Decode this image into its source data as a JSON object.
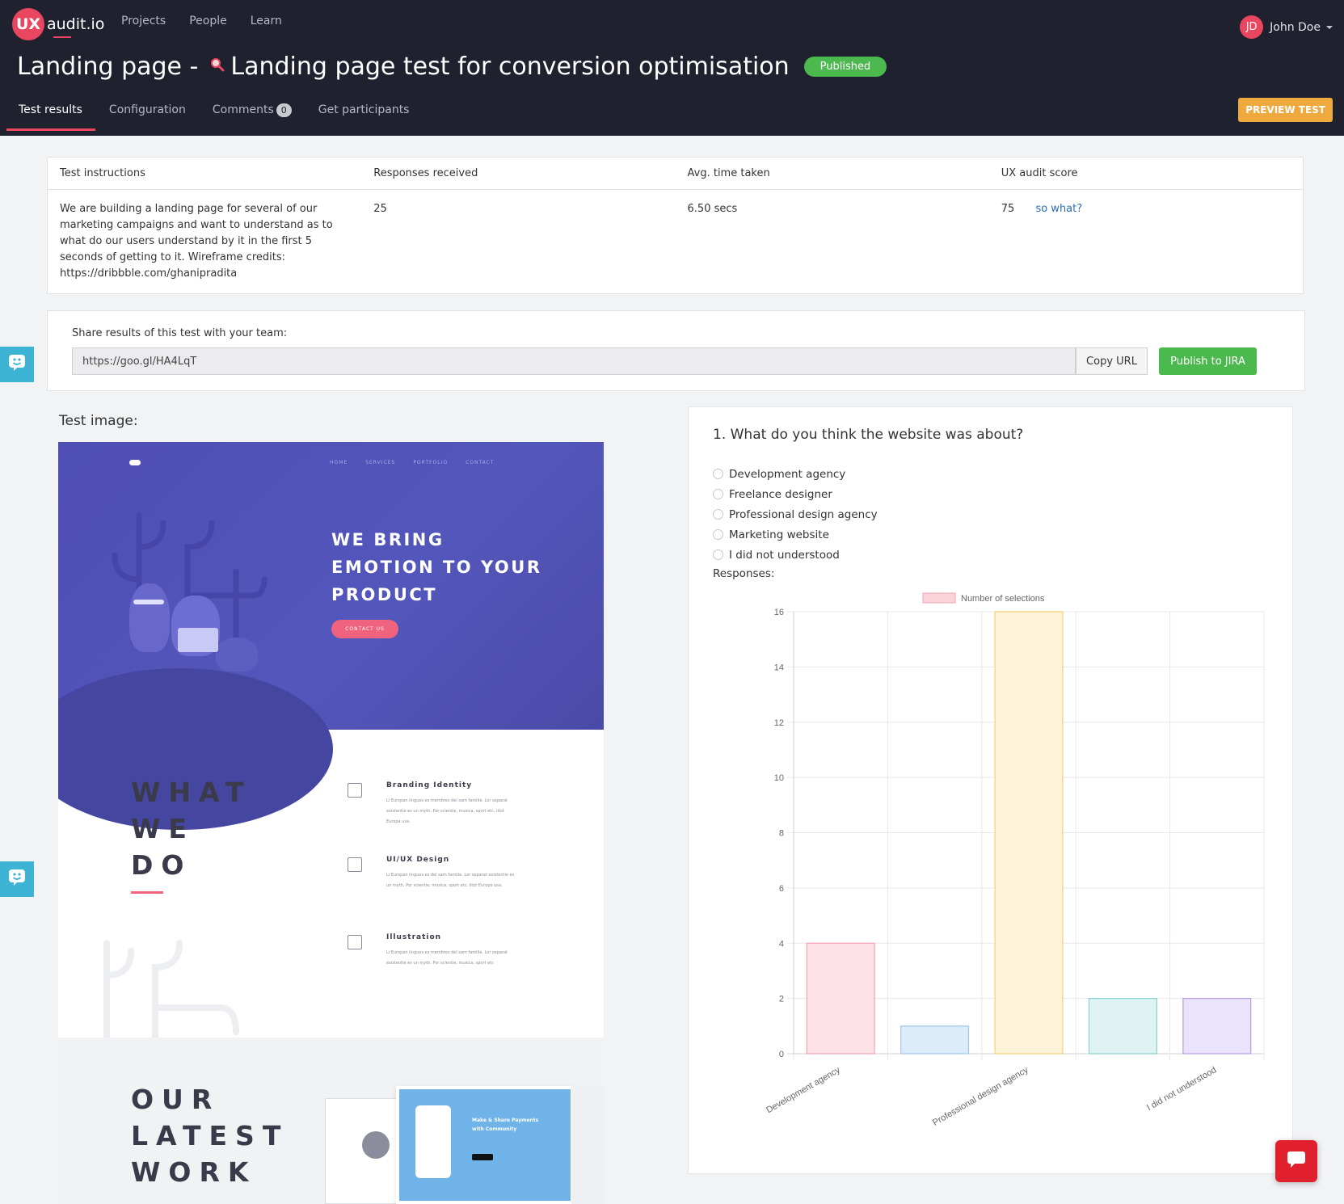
{
  "app": {
    "logo_mark": "UX",
    "logo_text": "audit.io"
  },
  "nav": [
    "Projects",
    "People",
    "Learn"
  ],
  "user": {
    "initials": "JD",
    "name": "John Doe"
  },
  "page": {
    "title_prefix": "Landing page -",
    "title_icon": "magnifier-icon",
    "title": "Landing page test for conversion optimisation",
    "status": "Published"
  },
  "tabs": [
    {
      "label": "Test results",
      "active": true
    },
    {
      "label": "Configuration"
    },
    {
      "label": "Comments",
      "count": "0"
    },
    {
      "label": "Get participants"
    }
  ],
  "preview_button": "PREVIEW TEST",
  "stats": {
    "headers": [
      "Test instructions",
      "Responses received",
      "Avg. time taken",
      "UX audit score"
    ],
    "instructions": "We are building a landing page for several of our marketing campaigns and want to understand as to what do our users understand by it in the first 5 seconds of getting to it. Wireframe credits: https://dribbble.com/ghanipradita",
    "responses": "25",
    "avg_time": "6.50 secs",
    "score": "75",
    "score_link": "so what?"
  },
  "share": {
    "label": "Share results of this test with your team:",
    "url": "https://goo.gl/HA4LqT",
    "copy_button": "Copy URL",
    "jira_button": "Publish to JIRA"
  },
  "test_image": {
    "label": "Test image:",
    "nav": [
      "HOME",
      "SERVICES",
      "PORTFOLIO",
      "CONTACT"
    ],
    "hero_heading": [
      "WE BRING",
      "EMOTION TO YOUR",
      "PRODUCT"
    ],
    "hero_button": "CONTACT US",
    "section_heading": [
      "WHAT",
      "WE",
      "DO"
    ],
    "services": [
      {
        "title": "Branding Identity",
        "text": "Li Europan lingues es membres del sam familie. Lor separat existentie es un myth. Por scientie, musica, sport etc, litot Europa usa."
      },
      {
        "title": "UI/UX Design",
        "text": "Li Europan lingues es del sam familie. Lor separat existentie es un myth. Por scientie, musica, sport etc, litot Europa usa."
      },
      {
        "title": "Illustration",
        "text": "Li Europan lingues es membres del sam familie. Lor separat existentie es un myth. Por scientie, musica, sport etc"
      }
    ],
    "work_heading": [
      "OUR",
      "LATEST",
      "WORK"
    ],
    "device_text": [
      "Make & Share Payments",
      "with Community"
    ]
  },
  "question": {
    "title": "1. What do you think the website was about?",
    "options": [
      "Development agency",
      "Freelance designer",
      "Professional design agency",
      "Marketing website",
      "I did not understood"
    ],
    "responses_label": "Responses:"
  },
  "chart_data": {
    "type": "bar",
    "categories": [
      "Development agency",
      "Freelance designer",
      "Professional design agency",
      "Marketing website",
      "I did not understood"
    ],
    "visible_x_labels": [
      "Development agency",
      "Professional design agency",
      "I did not understood"
    ],
    "series": [
      {
        "name": "Number of selections",
        "values": [
          4,
          1,
          16,
          2,
          2
        ]
      }
    ],
    "ylim": [
      0,
      16
    ],
    "yticks": [
      0,
      2,
      4,
      6,
      8,
      10,
      12,
      14,
      16
    ],
    "bar_fills": [
      "#fde3e8",
      "#dcecfa",
      "#fdf3d8",
      "#dff3f3",
      "#ebe2fb"
    ],
    "bar_strokes": [
      "#f4a3b4",
      "#9dc7ea",
      "#f6cf74",
      "#86d1cf",
      "#b99ce8"
    ],
    "legend_color": "#fbd3db",
    "legend_position": "top",
    "grid": true
  },
  "colors": {
    "brand": "#e8475f",
    "header_bg": "#20212f",
    "success": "#4cb94f",
    "warning": "#f0a93e",
    "link": "#2b6fb6"
  },
  "icons": {
    "feedback": "smiley-chat-icon",
    "chat": "chat-bubble-icon"
  }
}
